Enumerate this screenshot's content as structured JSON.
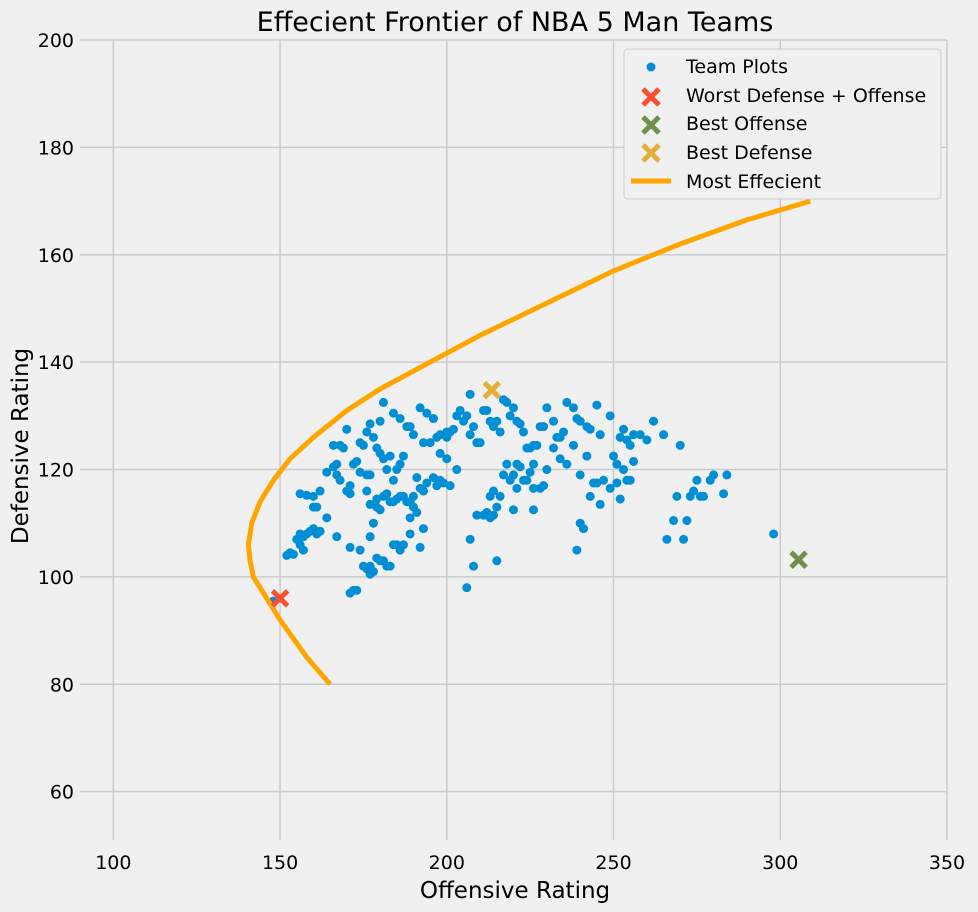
{
  "chart_data": {
    "type": "scatter",
    "title": "Effecient Frontier of NBA 5 Man Teams",
    "xlabel": "Offensive Rating",
    "ylabel": "Defensive Rating",
    "xlim": [
      90,
      350
    ],
    "ylim": [
      51,
      200
    ],
    "xticks": [
      100,
      150,
      200,
      250,
      300,
      350
    ],
    "yticks": [
      60,
      80,
      100,
      120,
      140,
      160,
      180,
      200
    ],
    "grid": true,
    "legend_position": "top-right",
    "legend": [
      {
        "label": "Team Plots",
        "marker": "dot",
        "color": "#008fd5"
      },
      {
        "label": "Worst Defense + Offense",
        "marker": "x",
        "color": "#fc4f30"
      },
      {
        "label": "Best Offense",
        "marker": "x",
        "color": "#6d904f"
      },
      {
        "label": "Best Defense",
        "marker": "x",
        "color": "#e5ae38"
      },
      {
        "label": "Most Effecient",
        "marker": "line",
        "color": "#ffa500"
      }
    ],
    "series": [
      {
        "name": "Team Plots",
        "color": "#008fd5",
        "points": [
          [
            148,
            95.5
          ],
          [
            152,
            104
          ],
          [
            153,
            104.5
          ],
          [
            154,
            104.2
          ],
          [
            155,
            107
          ],
          [
            156,
            108
          ],
          [
            157,
            107.5
          ],
          [
            158,
            108
          ],
          [
            159,
            108.5
          ],
          [
            160,
            109
          ],
          [
            161,
            108
          ],
          [
            162,
            108.5
          ],
          [
            156,
            106
          ],
          [
            157,
            105
          ],
          [
            156,
            115.5
          ],
          [
            158,
            115.2
          ],
          [
            160,
            115
          ],
          [
            160,
            113
          ],
          [
            161,
            113
          ],
          [
            162,
            116
          ],
          [
            164,
            111
          ],
          [
            164,
            119.5
          ],
          [
            166,
            120.5
          ],
          [
            167,
            121
          ],
          [
            167,
            119
          ],
          [
            168,
            118
          ],
          [
            166,
            124.5
          ],
          [
            168,
            124.5
          ],
          [
            169,
            124
          ],
          [
            170,
            127.5
          ],
          [
            170,
            116
          ],
          [
            171,
            115.5
          ],
          [
            171,
            117
          ],
          [
            172,
            121
          ],
          [
            173,
            121.5
          ],
          [
            174,
            119.5
          ],
          [
            176,
            119
          ],
          [
            177,
            119
          ],
          [
            176,
            116
          ],
          [
            177,
            113.5
          ],
          [
            179,
            114.5
          ],
          [
            179,
            113
          ],
          [
            180,
            112.5
          ],
          [
            181,
            115
          ],
          [
            182,
            115.5
          ],
          [
            183,
            114
          ],
          [
            184,
            114
          ],
          [
            185,
            114.5
          ],
          [
            186,
            115
          ],
          [
            187,
            115
          ],
          [
            188,
            114
          ],
          [
            189,
            114
          ],
          [
            190,
            115
          ],
          [
            190,
            113
          ],
          [
            191,
            112
          ],
          [
            189,
            111
          ],
          [
            174,
            125
          ],
          [
            175,
            124.5
          ],
          [
            176,
            127
          ],
          [
            177,
            128.5
          ],
          [
            178,
            126
          ],
          [
            179,
            124
          ],
          [
            180,
            123
          ],
          [
            181,
            122
          ],
          [
            180,
            129
          ],
          [
            181,
            132.5
          ],
          [
            184,
            130.5
          ],
          [
            186,
            129.5
          ],
          [
            188,
            128
          ],
          [
            189,
            128
          ],
          [
            190,
            126.5
          ],
          [
            192,
            131.5
          ],
          [
            194,
            130.5
          ],
          [
            196,
            129.5
          ],
          [
            193,
            125
          ],
          [
            195,
            125
          ],
          [
            197,
            126
          ],
          [
            198,
            123
          ],
          [
            200,
            122
          ],
          [
            200,
            126
          ],
          [
            201,
            127
          ],
          [
            202,
            127.5
          ],
          [
            203,
            130
          ],
          [
            204,
            131
          ],
          [
            205,
            129
          ],
          [
            206,
            130
          ],
          [
            207,
            134
          ],
          [
            208,
            128
          ],
          [
            207,
            126.5
          ],
          [
            209,
            125
          ],
          [
            210,
            125
          ],
          [
            211,
            131
          ],
          [
            212,
            131
          ],
          [
            213,
            129
          ],
          [
            214,
            128
          ],
          [
            215,
            129
          ],
          [
            216,
            127
          ],
          [
            217,
            133
          ],
          [
            218,
            132.5
          ],
          [
            219,
            130
          ],
          [
            220,
            131.5
          ],
          [
            221,
            129
          ],
          [
            222,
            128.5
          ],
          [
            223,
            127
          ],
          [
            224,
            124
          ],
          [
            225,
            124
          ],
          [
            226,
            124.5
          ],
          [
            227,
            124.5
          ],
          [
            228,
            128
          ],
          [
            229,
            128
          ],
          [
            230,
            131.5
          ],
          [
            232,
            129
          ],
          [
            233,
            126
          ],
          [
            234,
            126
          ],
          [
            235,
            127
          ],
          [
            236,
            132.5
          ],
          [
            238,
            131.5
          ],
          [
            239,
            129.5
          ],
          [
            240,
            129
          ],
          [
            242,
            128
          ],
          [
            243,
            127.5
          ],
          [
            245,
            132
          ],
          [
            246,
            126.5
          ],
          [
            249,
            130
          ],
          [
            250,
            122.5
          ],
          [
            251,
            121
          ],
          [
            252,
            126
          ],
          [
            253,
            127.5
          ],
          [
            254,
            125.5
          ],
          [
            255,
            124.5
          ],
          [
            256,
            126.5
          ],
          [
            258,
            126.5
          ],
          [
            260,
            125.5
          ],
          [
            262,
            129
          ],
          [
            265,
            126.5
          ],
          [
            270,
            124.5
          ],
          [
            174,
            105
          ],
          [
            175,
            102
          ],
          [
            176,
            101.5
          ],
          [
            177,
            102
          ],
          [
            178,
            101
          ],
          [
            179,
            103.5
          ],
          [
            180,
            103
          ],
          [
            181,
            103
          ],
          [
            182,
            102
          ],
          [
            183,
            102
          ],
          [
            184,
            106
          ],
          [
            185,
            106
          ],
          [
            186,
            105
          ],
          [
            187,
            106
          ],
          [
            189,
            108
          ],
          [
            192,
            105.5
          ],
          [
            193,
            109
          ],
          [
            177,
            107.5
          ],
          [
            178,
            110
          ],
          [
            171,
            105.5
          ],
          [
            171,
            97
          ],
          [
            172,
            97.5
          ],
          [
            173,
            97.5
          ],
          [
            177,
            100.5
          ],
          [
            167,
            107.5
          ],
          [
            206,
            98
          ],
          [
            208,
            102
          ],
          [
            207,
            107
          ],
          [
            215,
            103
          ],
          [
            209,
            111.5
          ],
          [
            211,
            111.5
          ],
          [
            212,
            112
          ],
          [
            213,
            111
          ],
          [
            214,
            111.5
          ],
          [
            215,
            113
          ],
          [
            216,
            115
          ],
          [
            213,
            115
          ],
          [
            214,
            116
          ],
          [
            217,
            119
          ],
          [
            218,
            121
          ],
          [
            220,
            119
          ],
          [
            221,
            121
          ],
          [
            222,
            120.5
          ],
          [
            223,
            118
          ],
          [
            224,
            118
          ],
          [
            226,
            116.5
          ],
          [
            228,
            116.5
          ],
          [
            229,
            117
          ],
          [
            230,
            120
          ],
          [
            232,
            124
          ],
          [
            234,
            122
          ],
          [
            236,
            121
          ],
          [
            238,
            124.5
          ],
          [
            240,
            119
          ],
          [
            242,
            122.5
          ],
          [
            244,
            117.5
          ],
          [
            245,
            117.5
          ],
          [
            247,
            118
          ],
          [
            249,
            116.5
          ],
          [
            251,
            117.5
          ],
          [
            253,
            120
          ],
          [
            254,
            118
          ],
          [
            255,
            118
          ],
          [
            256,
            121.5
          ],
          [
            240,
            110
          ],
          [
            241,
            109
          ],
          [
            243,
            115
          ],
          [
            246,
            113.5
          ],
          [
            239,
            105
          ],
          [
            252,
            114.5
          ],
          [
            266,
            107
          ],
          [
            268,
            110.5
          ],
          [
            269,
            115
          ],
          [
            271,
            107
          ],
          [
            272,
            110.5
          ],
          [
            273,
            115
          ],
          [
            274,
            116
          ],
          [
            275,
            118
          ],
          [
            276,
            115
          ],
          [
            277,
            115
          ],
          [
            279,
            118
          ],
          [
            280,
            119
          ],
          [
            283,
            115.5
          ],
          [
            284,
            119
          ],
          [
            298,
            108
          ],
          [
            220,
            112.5
          ],
          [
            226,
            112.5
          ],
          [
            221,
            116.5
          ],
          [
            219,
            118
          ],
          [
            225,
            119.5
          ],
          [
            226,
            121
          ],
          [
            194,
            117.5
          ],
          [
            196,
            118.5
          ],
          [
            197,
            117
          ],
          [
            198,
            118
          ],
          [
            199,
            117.5
          ],
          [
            201,
            117
          ],
          [
            203,
            120
          ],
          [
            191,
            118.5
          ],
          [
            192,
            116.5
          ],
          [
            193,
            116
          ],
          [
            200,
            127
          ],
          [
            198,
            126.5
          ],
          [
            186,
            121
          ],
          [
            187,
            122.5
          ],
          [
            185,
            120
          ],
          [
            184,
            118
          ],
          [
            183,
            122.5
          ],
          [
            182,
            120
          ]
        ]
      },
      {
        "name": "Worst Defense + Offense",
        "marker": "x",
        "color": "#fc4f30",
        "points": [
          [
            150,
            96
          ]
        ]
      },
      {
        "name": "Best Offense",
        "marker": "x",
        "color": "#6d904f",
        "points": [
          [
            305.5,
            103.2
          ]
        ]
      },
      {
        "name": "Best Defense",
        "marker": "x",
        "color": "#e5ae38",
        "points": [
          [
            213.5,
            134.8
          ]
        ]
      },
      {
        "name": "Most Effecient",
        "marker": "line",
        "color": "#ffa500",
        "points": [
          [
            165,
            80
          ],
          [
            158,
            85
          ],
          [
            150,
            92
          ],
          [
            145,
            97
          ],
          [
            142,
            100
          ],
          [
            141,
            103
          ],
          [
            140.5,
            106
          ],
          [
            141.5,
            110
          ],
          [
            144,
            114
          ],
          [
            148,
            118
          ],
          [
            153,
            122
          ],
          [
            160,
            126
          ],
          [
            170,
            131
          ],
          [
            180,
            135
          ],
          [
            195,
            140
          ],
          [
            210,
            145
          ],
          [
            230,
            151
          ],
          [
            250,
            157
          ],
          [
            270,
            162
          ],
          [
            290,
            166.5
          ],
          [
            309,
            170
          ]
        ]
      }
    ]
  }
}
